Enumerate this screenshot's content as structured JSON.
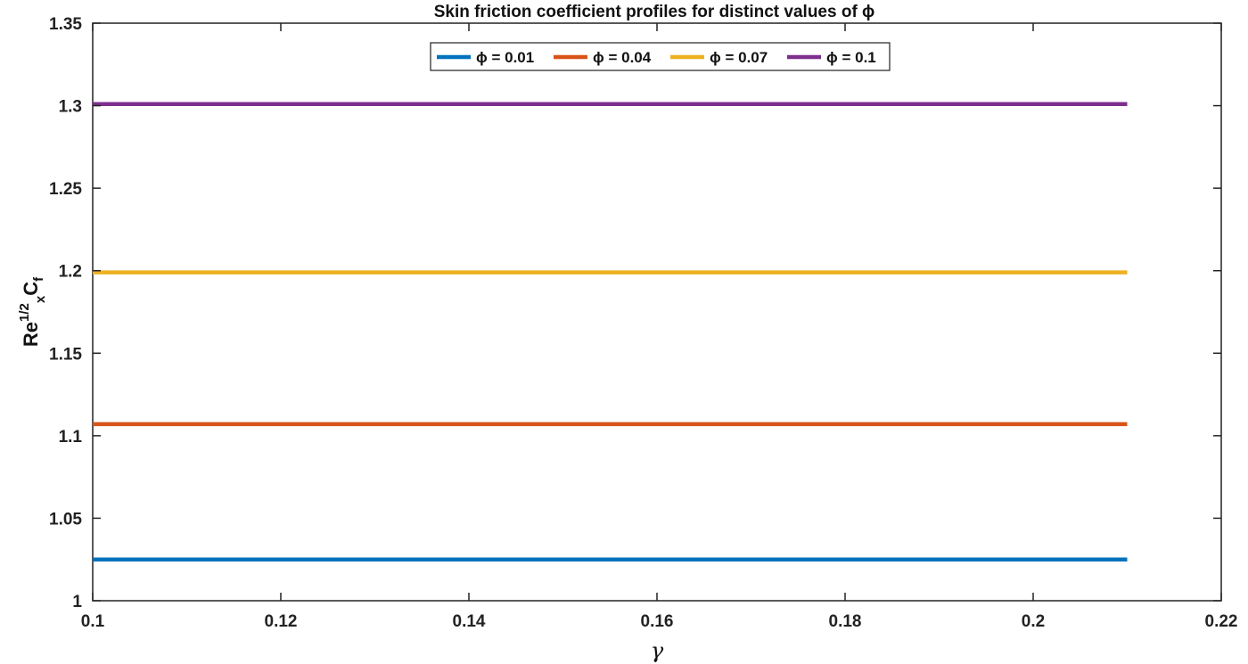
{
  "chart_data": {
    "type": "line",
    "title": "Skin friction coefficient profiles for distinct values of ϕ",
    "xlabel": "γ",
    "ylabel": {
      "base": "Re",
      "sub": "x",
      "sup": "1/2",
      "main": "C",
      "main_sub": "f"
    },
    "xlim": [
      0.1,
      0.22
    ],
    "ylim": [
      1,
      1.35
    ],
    "x_ticks": [
      0.1,
      0.12,
      0.14,
      0.16,
      0.18,
      0.2,
      0.22
    ],
    "x_tick_labels": [
      "0.1",
      "0.12",
      "0.14",
      "0.16",
      "0.18",
      "0.2",
      "0.22"
    ],
    "y_ticks": [
      1,
      1.05,
      1.1,
      1.15,
      1.2,
      1.25,
      1.3,
      1.35
    ],
    "y_tick_labels": [
      "1",
      "1.05",
      "1.1",
      "1.15",
      "1.2",
      "1.25",
      "1.3",
      "1.35"
    ],
    "grid": false,
    "legend_position": "top-center",
    "x": [
      0.1,
      0.21
    ],
    "series": [
      {
        "name": "ϕ = 0.01",
        "color": "#0072BD",
        "values": [
          1.025,
          1.025
        ]
      },
      {
        "name": "ϕ = 0.04",
        "color": "#D95319",
        "values": [
          1.107,
          1.107
        ]
      },
      {
        "name": "ϕ = 0.07",
        "color": "#EDB120",
        "values": [
          1.199,
          1.199
        ]
      },
      {
        "name": "ϕ = 0.1",
        "color": "#7E2F8E",
        "values": [
          1.301,
          1.301
        ]
      }
    ]
  }
}
